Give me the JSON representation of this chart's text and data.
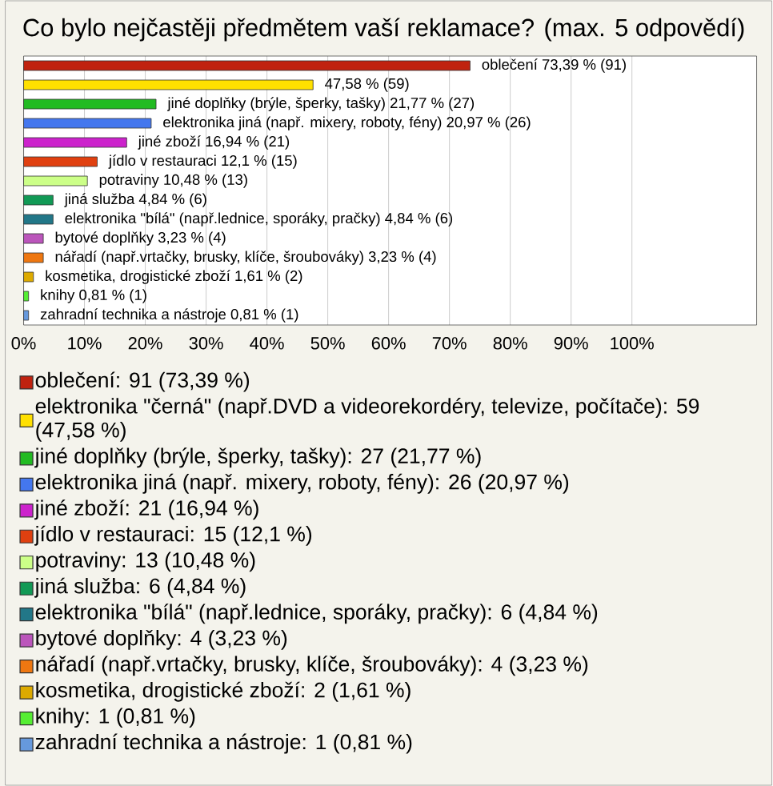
{
  "chart_data": {
    "type": "bar",
    "orientation": "horizontal",
    "title": "Co bylo nejčastěji předmětem vaší reklamace? (max. 5 odpovědí)",
    "categories": [
      null,
      null,
      null,
      null,
      null,
      null,
      null,
      null,
      null,
      null,
      null,
      null,
      null,
      null
    ],
    "series": [
      {
        "name": "oblečení: 91 (73,39 %)",
        "color": "#c0220f",
        "values": [
          73.39,
          null,
          null,
          null,
          null,
          null,
          null,
          null,
          null,
          null,
          null,
          null,
          null,
          null
        ],
        "value_labels": [
          "oblečení 73,39 % (91)",
          null,
          null,
          null,
          null,
          null,
          null,
          null,
          null,
          null,
          null,
          null,
          null,
          null
        ]
      },
      {
        "name": "elektronika \"černá\" (např.DVD a videorekordéry, televize, počítače): 59 (47,58 %)",
        "color": "#ffe000",
        "values": [
          null,
          47.58,
          null,
          null,
          null,
          null,
          null,
          null,
          null,
          null,
          null,
          null,
          null,
          null
        ],
        "value_labels": [
          null,
          "47,58 % (59)",
          null,
          null,
          null,
          null,
          null,
          null,
          null,
          null,
          null,
          null,
          null,
          null
        ]
      },
      {
        "name": "jiné doplňky (brýle, šperky, tašky): 27 (21,77 %)",
        "color": "#22bb22",
        "values": [
          null,
          null,
          21.77,
          null,
          null,
          null,
          null,
          null,
          null,
          null,
          null,
          null,
          null,
          null
        ],
        "value_labels": [
          null,
          null,
          "jiné doplňky (brýle, šperky, tašky) 21,77 % (27)",
          null,
          null,
          null,
          null,
          null,
          null,
          null,
          null,
          null,
          null,
          null
        ]
      },
      {
        "name": "elektronika jiná (např. mixery, roboty, fény): 26 (20,97 %)",
        "color": "#4477ee",
        "values": [
          null,
          null,
          null,
          20.97,
          null,
          null,
          null,
          null,
          null,
          null,
          null,
          null,
          null,
          null
        ],
        "value_labels": [
          null,
          null,
          null,
          "elektronika jiná (např. mixery, roboty, fény) 20,97 % (26)",
          null,
          null,
          null,
          null,
          null,
          null,
          null,
          null,
          null,
          null
        ]
      },
      {
        "name": "jiné zboží: 21 (16,94 %)",
        "color": "#cc22cc",
        "values": [
          null,
          null,
          null,
          null,
          16.94,
          null,
          null,
          null,
          null,
          null,
          null,
          null,
          null,
          null
        ],
        "value_labels": [
          null,
          null,
          null,
          null,
          "jiné zboží 16,94 % (21)",
          null,
          null,
          null,
          null,
          null,
          null,
          null,
          null,
          null
        ]
      },
      {
        "name": "jídlo v restauraci: 15 (12,1 %)",
        "color": "#e04010",
        "values": [
          null,
          null,
          null,
          null,
          null,
          12.1,
          null,
          null,
          null,
          null,
          null,
          null,
          null,
          null
        ],
        "value_labels": [
          null,
          null,
          null,
          null,
          null,
          "jídlo v restauraci 12,1 % (15)",
          null,
          null,
          null,
          null,
          null,
          null,
          null,
          null
        ]
      },
      {
        "name": "potraviny: 13 (10,48 %)",
        "color": "#ccff88",
        "values": [
          null,
          null,
          null,
          null,
          null,
          null,
          10.48,
          null,
          null,
          null,
          null,
          null,
          null,
          null
        ],
        "value_labels": [
          null,
          null,
          null,
          null,
          null,
          null,
          "potraviny 10,48 % (13)",
          null,
          null,
          null,
          null,
          null,
          null,
          null
        ]
      },
      {
        "name": "jiná služba: 6 (4,84 %)",
        "color": "#119955",
        "values": [
          null,
          null,
          null,
          null,
          null,
          null,
          null,
          4.84,
          null,
          null,
          null,
          null,
          null,
          null
        ],
        "value_labels": [
          null,
          null,
          null,
          null,
          null,
          null,
          null,
          "jiná služba 4,84 % (6)",
          null,
          null,
          null,
          null,
          null,
          null
        ]
      },
      {
        "name": "elektronika \"bílá\" (např.lednice, sporáky, pračky): 6 (4,84 %)",
        "color": "#227788",
        "values": [
          null,
          null,
          null,
          null,
          null,
          null,
          null,
          null,
          4.84,
          null,
          null,
          null,
          null,
          null
        ],
        "value_labels": [
          null,
          null,
          null,
          null,
          null,
          null,
          null,
          null,
          "elektronika \"bílá\" (např.lednice, sporáky, pračky) 4,84 % (6)",
          null,
          null,
          null,
          null,
          null
        ]
      },
      {
        "name": "bytové doplňky: 4 (3,23 %)",
        "color": "#bb55bb",
        "values": [
          null,
          null,
          null,
          null,
          null,
          null,
          null,
          null,
          null,
          3.23,
          null,
          null,
          null,
          null
        ],
        "value_labels": [
          null,
          null,
          null,
          null,
          null,
          null,
          null,
          null,
          null,
          "bytové doplňky 3,23 % (4)",
          null,
          null,
          null,
          null
        ]
      },
      {
        "name": "nářadí (např.vrtačky, brusky, klíče, šroubováky): 4 (3,23 %)",
        "color": "#ee7711",
        "values": [
          null,
          null,
          null,
          null,
          null,
          null,
          null,
          null,
          null,
          null,
          3.23,
          null,
          null,
          null
        ],
        "value_labels": [
          null,
          null,
          null,
          null,
          null,
          null,
          null,
          null,
          null,
          null,
          "nářadí (např.vrtačky, brusky, klíče, šroubováky) 3,23 % (4)",
          null,
          null,
          null
        ]
      },
      {
        "name": "kosmetika, drogistické zboží: 2 (1,61 %)",
        "color": "#ddaa00",
        "values": [
          null,
          null,
          null,
          null,
          null,
          null,
          null,
          null,
          null,
          null,
          null,
          1.61,
          null,
          null
        ],
        "value_labels": [
          null,
          null,
          null,
          null,
          null,
          null,
          null,
          null,
          null,
          null,
          null,
          "kosmetika, drogistické zboží 1,61 % (2)",
          null,
          null
        ]
      },
      {
        "name": "knihy: 1 (0,81 %)",
        "color": "#55ee33",
        "values": [
          null,
          null,
          null,
          null,
          null,
          null,
          null,
          null,
          null,
          null,
          null,
          null,
          0.81,
          null
        ],
        "value_labels": [
          null,
          null,
          null,
          null,
          null,
          null,
          null,
          null,
          null,
          null,
          null,
          null,
          "knihy 0,81 % (1)",
          null
        ]
      },
      {
        "name": "zahradní technika a nástroje: 1 (0,81 %)",
        "color": "#6699dd",
        "values": [
          null,
          null,
          null,
          null,
          null,
          null,
          null,
          null,
          null,
          null,
          null,
          null,
          null,
          0.81
        ],
        "value_labels": [
          null,
          null,
          null,
          null,
          null,
          null,
          null,
          null,
          null,
          null,
          null,
          null,
          null,
          "zahradní technika a nástroje 0,81 % (1)"
        ]
      }
    ],
    "xlim": [
      0,
      120.5
    ],
    "xticks": [
      {
        "value": 0,
        "label": "0%"
      },
      {
        "value": 10,
        "label": "10%"
      },
      {
        "value": 20,
        "label": "20%"
      },
      {
        "value": 30,
        "label": "30%"
      },
      {
        "value": 40,
        "label": "40%"
      },
      {
        "value": 50,
        "label": "50%"
      },
      {
        "value": 60,
        "label": "60%"
      },
      {
        "value": 70,
        "label": "70%"
      },
      {
        "value": 80,
        "label": "80%"
      },
      {
        "value": 90,
        "label": "90%"
      },
      {
        "value": 100,
        "label": "100%"
      }
    ],
    "grid": "x",
    "legend": "bottom"
  }
}
